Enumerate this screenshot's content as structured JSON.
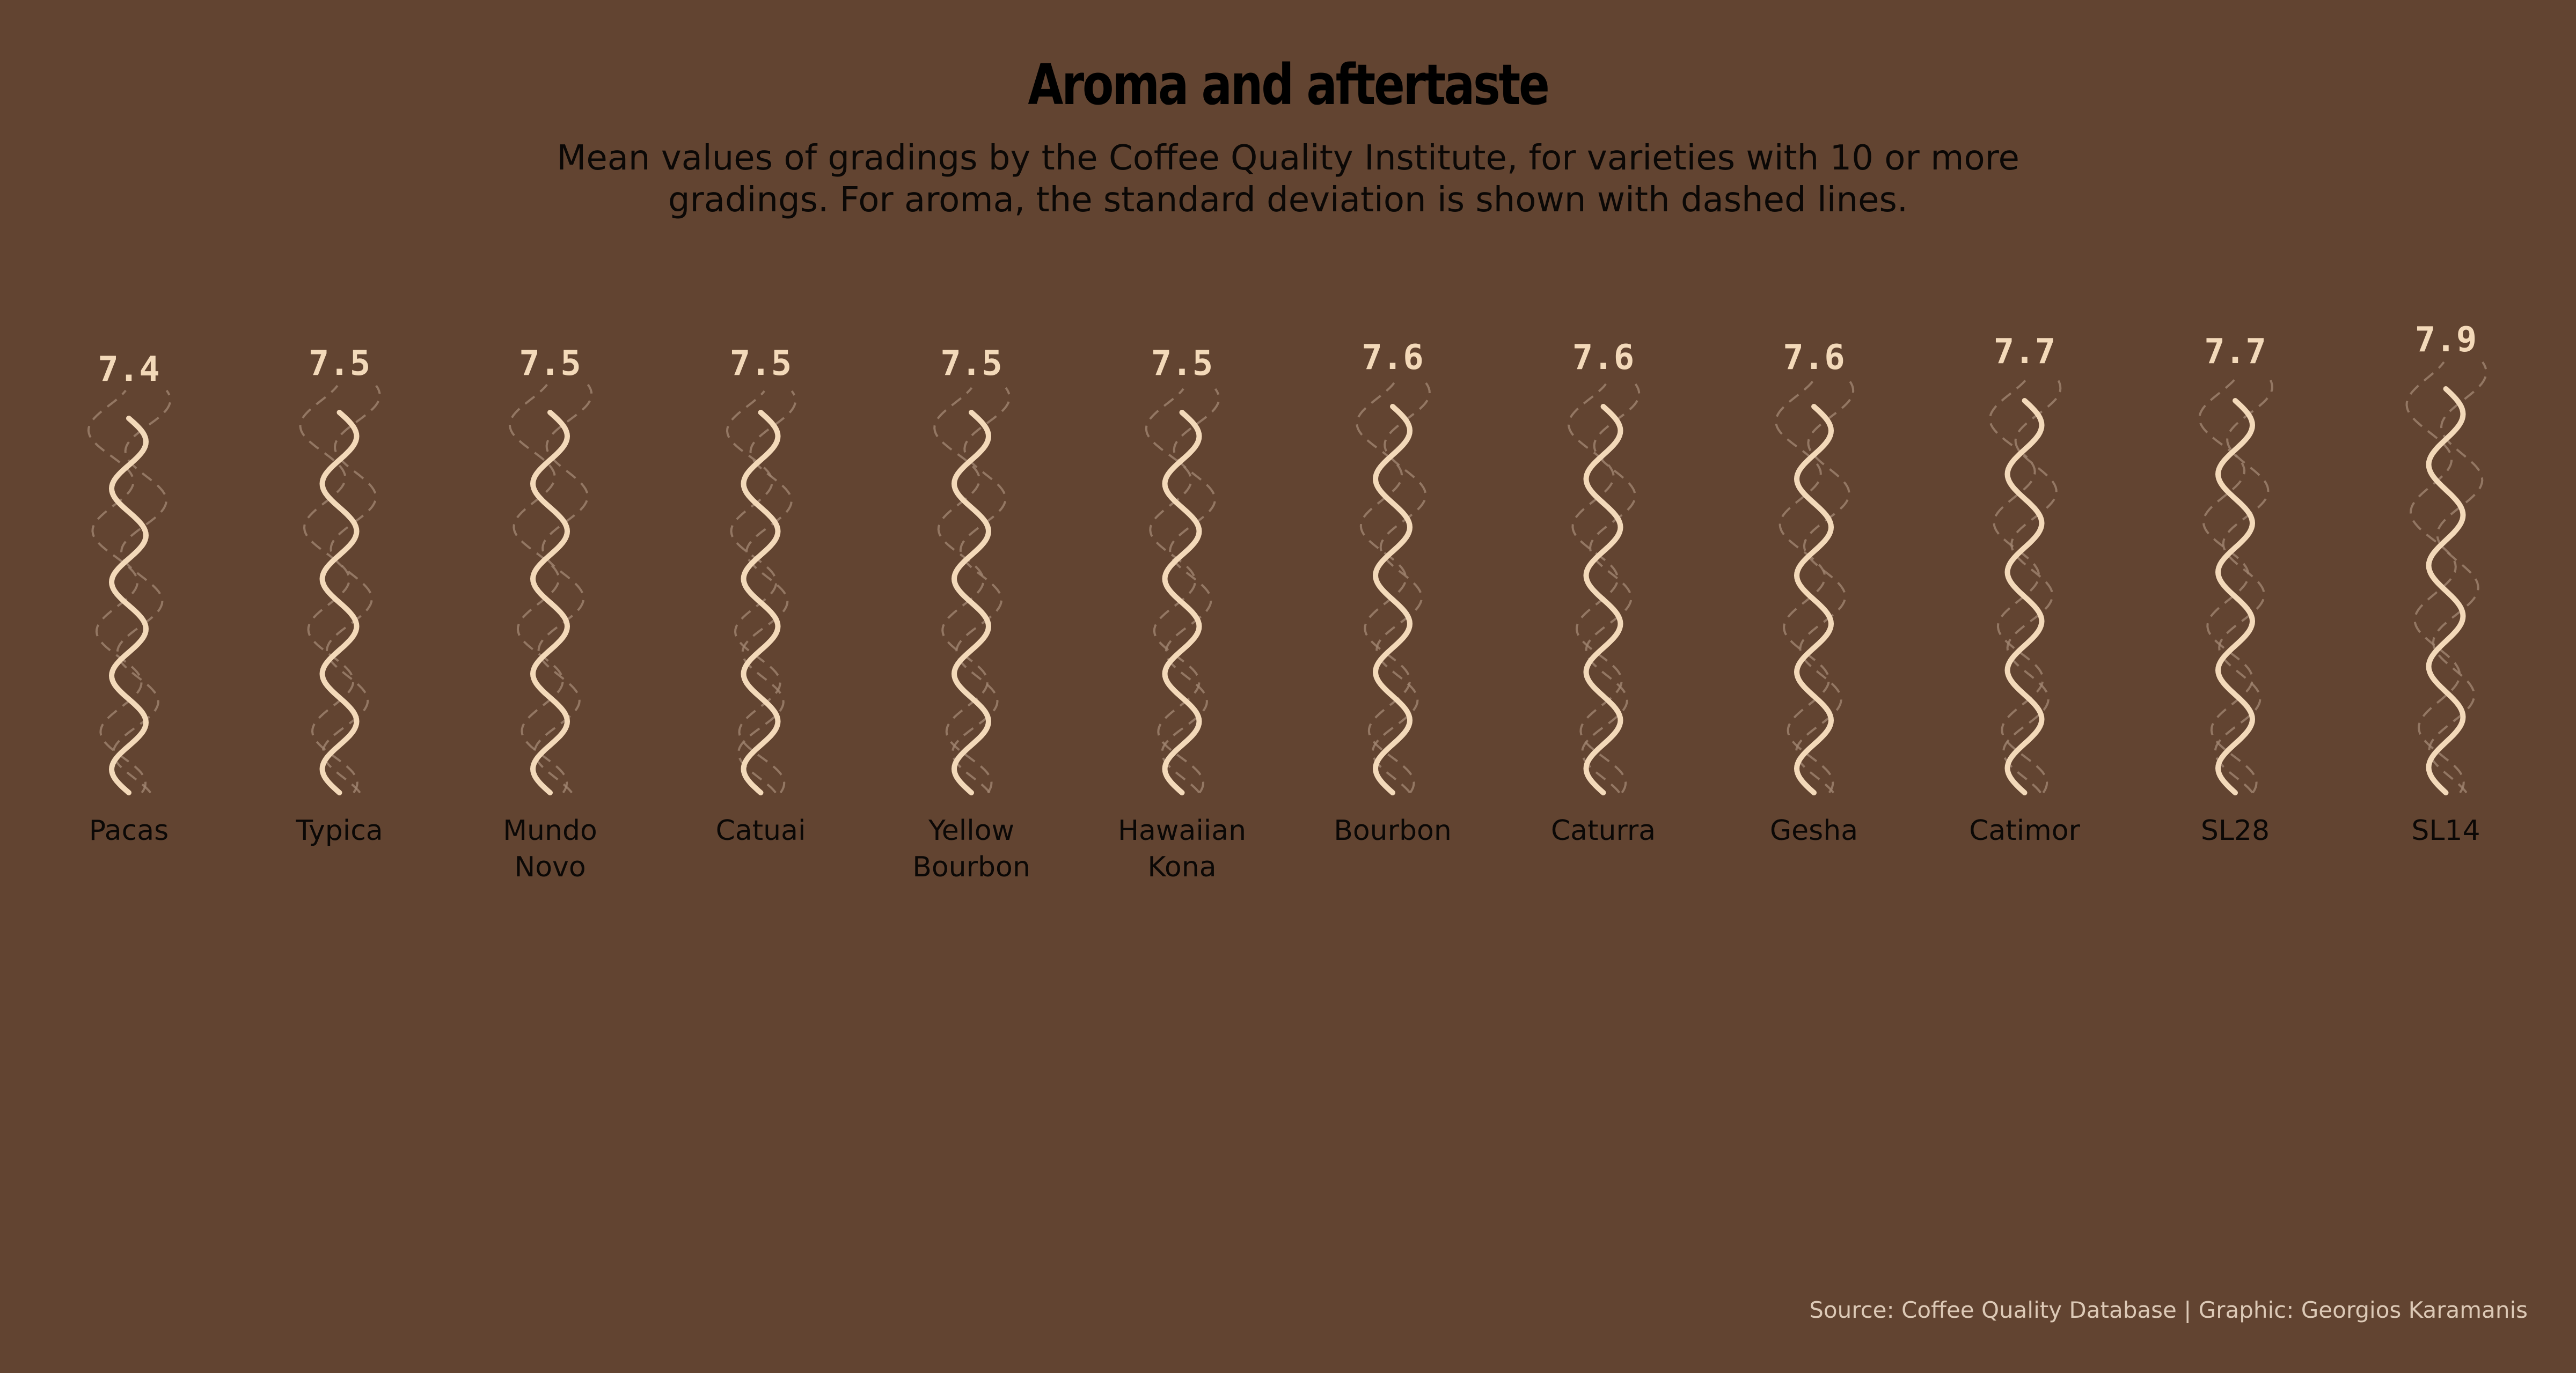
{
  "title": "Aroma and aftertaste",
  "subtitle": "Mean values of gradings by the Coffee Quality Institute, for varieties with 10 or more gradings. For aroma, the standard deviation is shown with dashed lines.",
  "caption": "Source: Coffee Quality Database | Graphic: Georgios Karamanis",
  "colors": {
    "background": "#624431",
    "wave": "#f3d9b9",
    "sd_wave": "#a08470",
    "text_dark": "#0b0806",
    "value_text": "#f3d9b9"
  },
  "chart_data": {
    "type": "line",
    "title": "Aroma and aftertaste",
    "subtitle": "Mean values of gradings by the Coffee Quality Institute, for varieties with 10 or more gradings. For aroma, the standard deviation is shown with dashed lines.",
    "categories": [
      "Pacas",
      "Typica",
      "Mundo Novo",
      "Catuai",
      "Yellow Bourbon",
      "Hawaiian Kona",
      "Bourbon",
      "Caturra",
      "Gesha",
      "Catimor",
      "SL28",
      "SL14"
    ],
    "category_lines": [
      [
        "Pacas"
      ],
      [
        "Typica"
      ],
      [
        "Mundo",
        "Novo"
      ],
      [
        "Catuai"
      ],
      [
        "Yellow",
        "Bourbon"
      ],
      [
        "Hawaiian",
        "Kona"
      ],
      [
        "Bourbon"
      ],
      [
        "Caturra"
      ],
      [
        "Gesha"
      ],
      [
        "Catimor"
      ],
      [
        "SL28"
      ],
      [
        "SL14"
      ]
    ],
    "aroma_mean": [
      7.4,
      7.5,
      7.5,
      7.5,
      7.5,
      7.5,
      7.6,
      7.6,
      7.6,
      7.7,
      7.7,
      7.9
    ],
    "value_labels": [
      "7.4",
      "7.5",
      "7.5",
      "7.5",
      "7.5",
      "7.5",
      "7.6",
      "7.6",
      "7.6",
      "7.7",
      "7.7",
      "7.9"
    ],
    "aroma_sd_relative": [
      0.55,
      0.5,
      0.55,
      0.25,
      0.4,
      0.35,
      0.35,
      0.3,
      0.45,
      0.3,
      0.35,
      0.5
    ],
    "grid": false,
    "legend": "none"
  }
}
